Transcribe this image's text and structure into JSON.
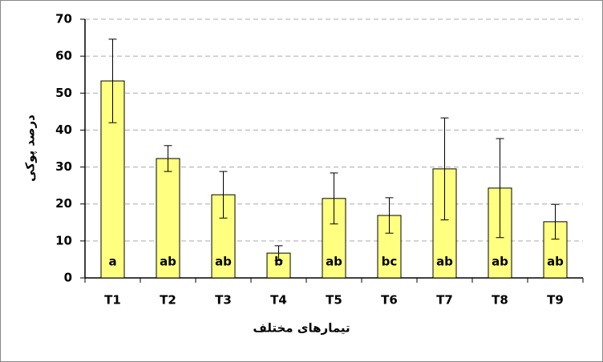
{
  "chart_data": {
    "type": "bar",
    "x_label": "تیمارهای مختلف",
    "y_label": "درصد پوکی",
    "categories": [
      "T1",
      "T2",
      "T3",
      "T4",
      "T5",
      "T6",
      "T7",
      "T8",
      "T9"
    ],
    "values": [
      53.3,
      32.3,
      22.5,
      6.7,
      21.5,
      16.9,
      29.5,
      24.3,
      15.2
    ],
    "errors": [
      11.3,
      3.5,
      6.3,
      2.0,
      6.9,
      4.8,
      13.8,
      13.4,
      4.7
    ],
    "letters": [
      "a",
      "ab",
      "ab",
      "b",
      "ab",
      "bc",
      "ab",
      "ab",
      "ab"
    ],
    "color": "#ffff80",
    "ylim": [
      0,
      70
    ],
    "yticks": [
      0,
      10,
      20,
      30,
      40,
      50,
      60,
      70
    ],
    "grid": true
  }
}
